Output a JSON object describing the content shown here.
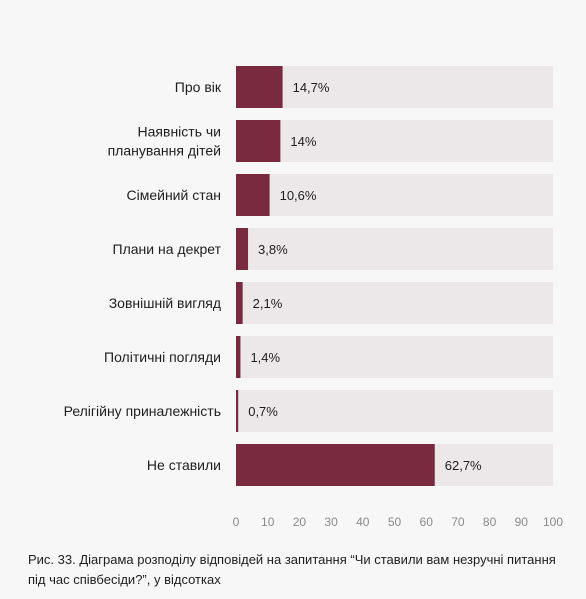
{
  "chart_data": {
    "type": "bar",
    "orientation": "horizontal",
    "categories": [
      [
        "Про вік"
      ],
      [
        "Наявність чи",
        "планування дітей"
      ],
      [
        "Сімейний стан"
      ],
      [
        "Плани на декрет"
      ],
      [
        "Зовнішній вигляд"
      ],
      [
        "Політичні погляди"
      ],
      [
        "Релігійну приналежність"
      ],
      [
        "Не ставили"
      ]
    ],
    "values": [
      14.7,
      14,
      10.6,
      3.8,
      2.1,
      1.4,
      0.7,
      62.7
    ],
    "value_labels": [
      "14,7%",
      "14%",
      "10,6%",
      "3,8%",
      "2,1%",
      "1,4%",
      "0,7%",
      "62,7%"
    ],
    "xlim": [
      0,
      100
    ],
    "xticks": [
      0,
      10,
      20,
      30,
      40,
      50,
      60,
      70,
      80,
      90,
      100
    ],
    "grid": false,
    "colors": {
      "bar": "#7a2a3e",
      "track": "#ece8ea"
    }
  },
  "caption": "Рис. 33. Діаграма розподілу відповідей на запитання “Чи ставили вам незручні питання під час співбесіди?”, у відсотках"
}
